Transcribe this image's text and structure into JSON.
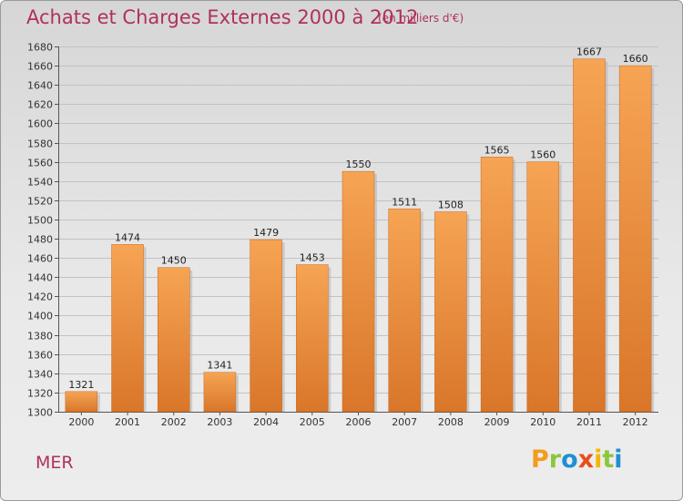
{
  "header": {
    "title": "Achats et Charges Externes 2000 à 2012",
    "subtitle": "(en milliers d'€)"
  },
  "footer": {
    "commune": "MER",
    "logo_letters": [
      "P",
      "r",
      "o",
      "x",
      "i",
      "t",
      "i"
    ],
    "logo_colors": [
      "#f39c1f",
      "#8cc63e",
      "#1f8fd4",
      "#e84e1b",
      "#f2b705",
      "#8cc63e",
      "#1f8fd4"
    ]
  },
  "colors": {
    "bar_light": "#f6a454",
    "bar_dark": "#d9762a",
    "title": "#b0305d"
  },
  "chart_data": {
    "type": "bar",
    "title": "Achats et Charges Externes 2000 à 2012",
    "subtitle": "(en milliers d'€)",
    "categories": [
      "2000",
      "2001",
      "2002",
      "2003",
      "2004",
      "2005",
      "2006",
      "2007",
      "2008",
      "2009",
      "2010",
      "2011",
      "2012"
    ],
    "values": [
      1321,
      1474,
      1450,
      1341,
      1479,
      1453,
      1550,
      1511,
      1508,
      1565,
      1560,
      1667,
      1660
    ],
    "data_labels": [
      "1321",
      "1474",
      "1450",
      "1341",
      "1479",
      "1453",
      "1550",
      "1511",
      "1508",
      "1565",
      "1560",
      "1667",
      "1660"
    ],
    "ylim": [
      1300,
      1680
    ],
    "yticks": [
      1300,
      1320,
      1340,
      1360,
      1380,
      1400,
      1420,
      1440,
      1460,
      1480,
      1500,
      1520,
      1540,
      1560,
      1580,
      1600,
      1620,
      1640,
      1660,
      1680
    ],
    "grid": true,
    "legend": "none"
  }
}
